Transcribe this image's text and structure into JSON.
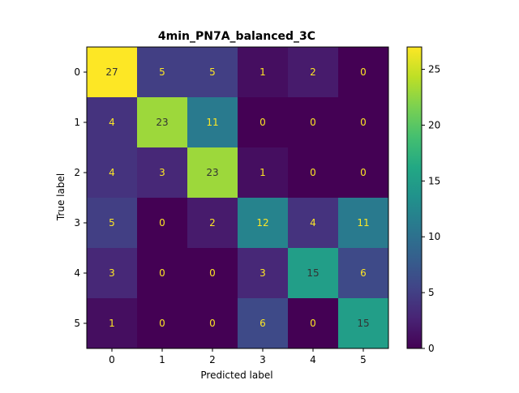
{
  "chart_data": {
    "type": "heatmap",
    "title": "4min_PN7A_balanced_3C",
    "xlabel": "Predicted label",
    "ylabel": "True label",
    "x_categories": [
      "0",
      "1",
      "2",
      "3",
      "4",
      "5"
    ],
    "y_categories": [
      "0",
      "1",
      "2",
      "3",
      "4",
      "5"
    ],
    "values": [
      [
        27,
        5,
        5,
        1,
        2,
        0
      ],
      [
        4,
        23,
        11,
        0,
        0,
        0
      ],
      [
        4,
        3,
        23,
        1,
        0,
        0
      ],
      [
        5,
        0,
        2,
        12,
        4,
        11
      ],
      [
        3,
        0,
        0,
        3,
        15,
        6
      ],
      [
        1,
        0,
        0,
        6,
        0,
        15
      ]
    ],
    "colormap": "viridis",
    "value_range": [
      0,
      27
    ],
    "colorbar_ticks": [
      "0",
      "5",
      "10",
      "15",
      "20",
      "25"
    ],
    "colorbar_tick_values": [
      0,
      5,
      10,
      15,
      20,
      25
    ],
    "grid": false,
    "text_color_dark": "#333333",
    "text_color_light": "#fde725"
  }
}
